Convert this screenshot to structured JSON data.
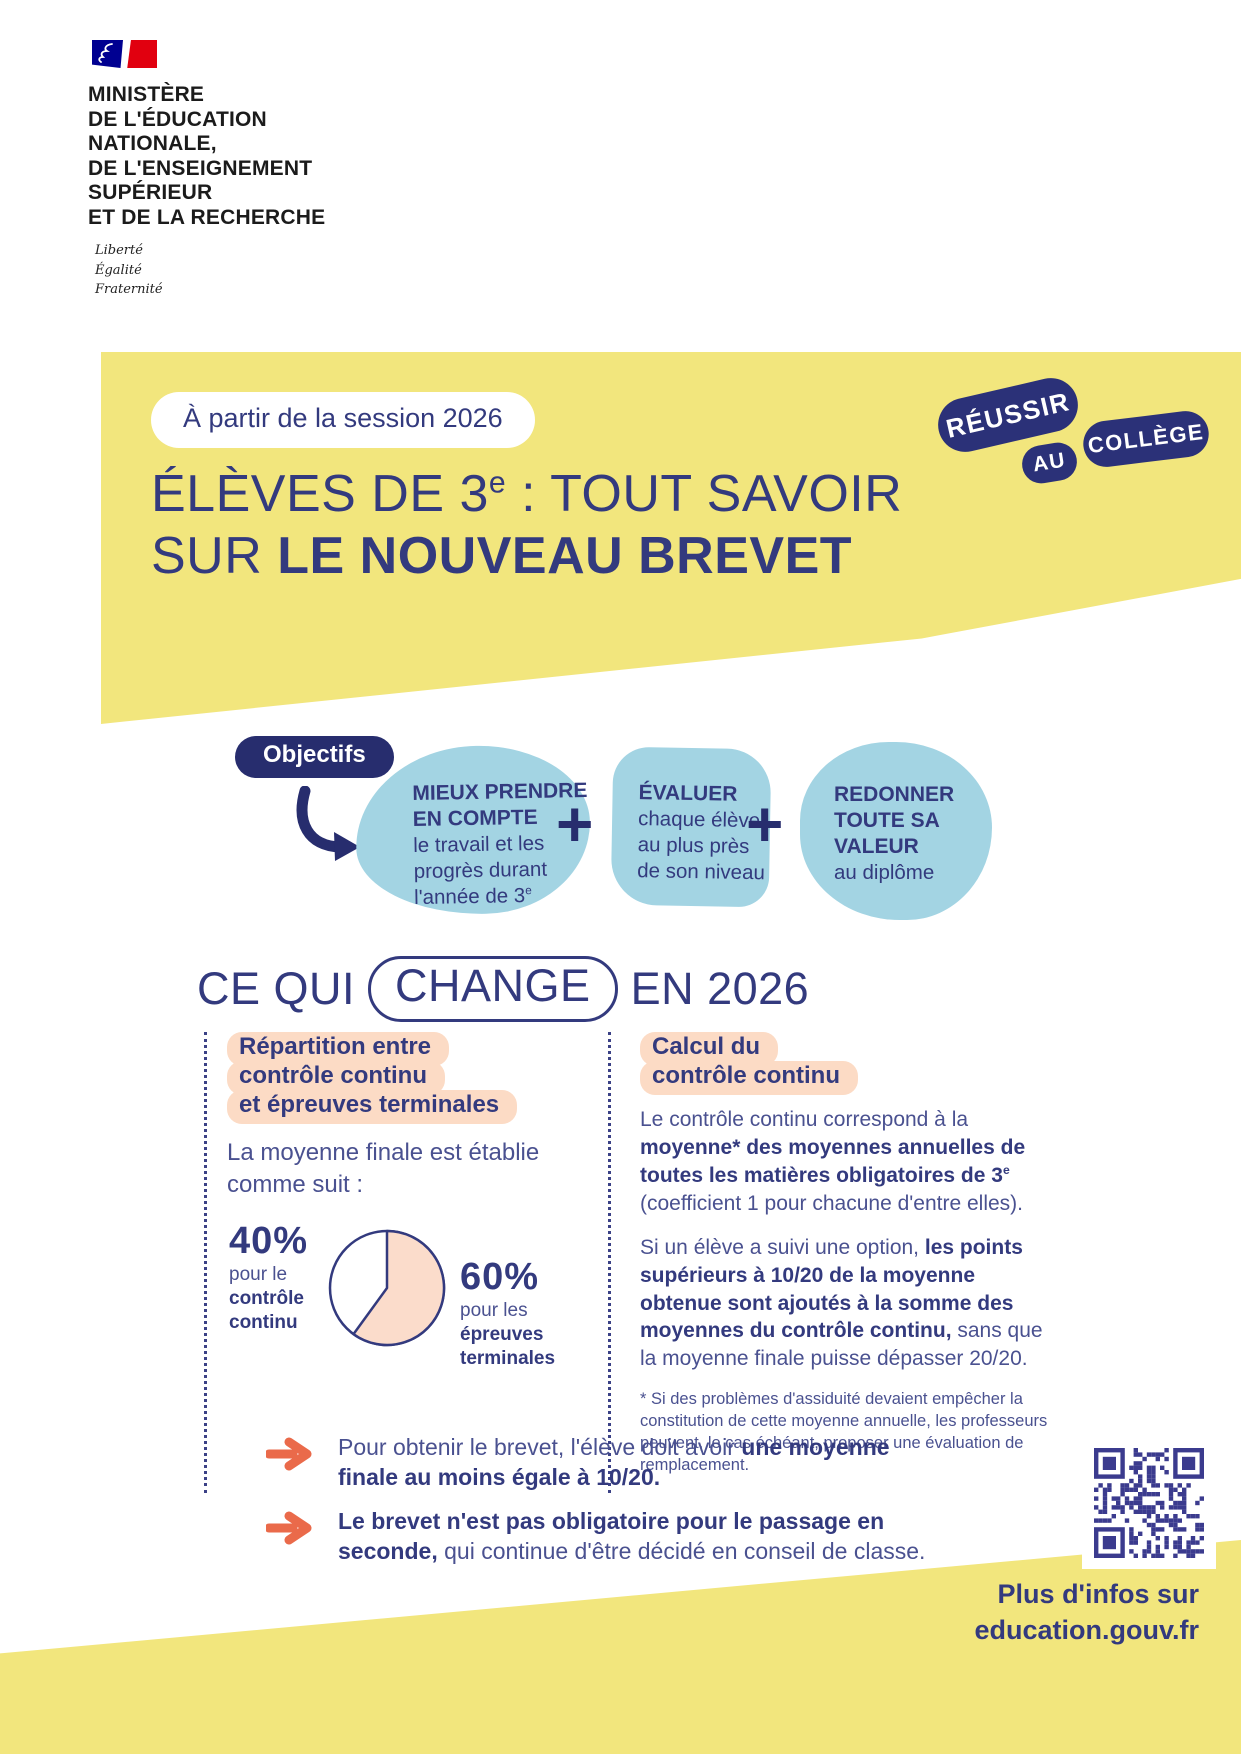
{
  "ministry": {
    "name_lines": [
      "MINISTÈRE",
      "DE L'ÉDUCATION",
      "NATIONALE,",
      "DE L'ENSEIGNEMENT",
      "SUPÉRIEUR",
      "ET DE LA RECHERCHE"
    ],
    "motto_lines": [
      "Liberté",
      "Égalité",
      "Fraternité"
    ]
  },
  "banner": {
    "session_pill": "À partir de la session 2026",
    "badges": {
      "reussir": "RÉUSSIR",
      "au": "AU",
      "college": "COLLÈGE"
    },
    "title": {
      "l1_a": "ÉLÈVES DE 3",
      "l1_sup": "e",
      "l1_b": " : TOUT SAVOIR",
      "l2_a": "SUR ",
      "l2_b": "LE NOUVEAU BREVET"
    }
  },
  "objectifs": {
    "label": "Objectifs",
    "plus": "+",
    "blobs": [
      {
        "bold_lines": [
          "MIEUX PRENDRE",
          "EN COMPTE"
        ],
        "lines": [
          "le travail et les",
          "progrès durant"
        ],
        "last_line": "l'année de 3",
        "last_sup": "e"
      },
      {
        "bold_lines": [
          "ÉVALUER"
        ],
        "lines": [
          "chaque élève",
          "au plus près",
          "de son niveau"
        ]
      },
      {
        "bold_lines": [
          "REDONNER",
          "TOUTE SA",
          "VALEUR"
        ],
        "lines": [
          "au diplôme"
        ]
      }
    ]
  },
  "change_heading": {
    "pre": "CE QUI",
    "pill": "CHANGE",
    "post": "EN 2026"
  },
  "left_col": {
    "header_lines": [
      "Répartition entre",
      "contrôle continu",
      "et épreuves terminales"
    ],
    "intro": "La moyenne finale est établie comme suit :",
    "pie": {
      "left_value": "40%",
      "left_line": "pour le",
      "left_bold": [
        "contrôle",
        "continu"
      ],
      "right_value": "60%",
      "right_line": "pour les",
      "right_bold": [
        "épreuves",
        "terminales"
      ]
    }
  },
  "right_col": {
    "header_lines": [
      "Calcul du",
      "contrôle continu"
    ],
    "p1": {
      "n1": "Le contrôle continu correspond à la ",
      "b1": "moyenne* des moyennes annuelles de toutes les matières obligatoires de 3",
      "b_sup": "e",
      "n2": " (coefficient 1 pour chacune d'entre elles)."
    },
    "p2": {
      "n1": "Si un élève a suivi une option, ",
      "b1": "les points supérieurs à 10/20 de la moyenne obtenue sont ajoutés à la somme des moyennes du contrôle continu,",
      "n2": " sans que la moyenne finale puisse dépasser 20/20."
    },
    "footnote": "* Si des problèmes d'assiduité devaient empêcher la constitution de cette moyenne annuelle, les professeurs peuvent, le cas échéant, proposer une évaluation de remplacement."
  },
  "takeaways": [
    {
      "n1": "Pour obtenir le brevet, l'élève doit avoir ",
      "b": "une moyenne finale au moins égale à 10/20.",
      "n2": ""
    },
    {
      "n1": "",
      "b": "Le brevet n'est pas obligatoire pour le passage en seconde,",
      "n2": " qui continue d'être décidé en conseil de classe."
    }
  ],
  "footer": {
    "line1": "Plus d'infos sur",
    "line2": "education.gouv.fr"
  },
  "chart_data": {
    "type": "pie",
    "labels": [
      "contrôle continu",
      "épreuves terminales"
    ],
    "values": [
      40,
      60
    ],
    "unit": "%",
    "title": "Répartition entre contrôle continu et épreuves terminales",
    "colors": [
      "#ffffff",
      "#fbdccb"
    ],
    "legend_position": "sides",
    "start_angle_deg": 0,
    "direction": "clockwise"
  },
  "colors": {
    "navy": "#272d6e",
    "navy_text": "#333a7e",
    "body_text": "#4a5190",
    "yellow": "#f2e67d",
    "light_blue": "#a3d4e3",
    "peach": "#fcdbc5",
    "pie_fill": "#fbdccb",
    "orange": "#ea6a4a",
    "flag_blue": "#000091",
    "flag_red": "#e1000f",
    "qr": "#3b3b8e"
  }
}
